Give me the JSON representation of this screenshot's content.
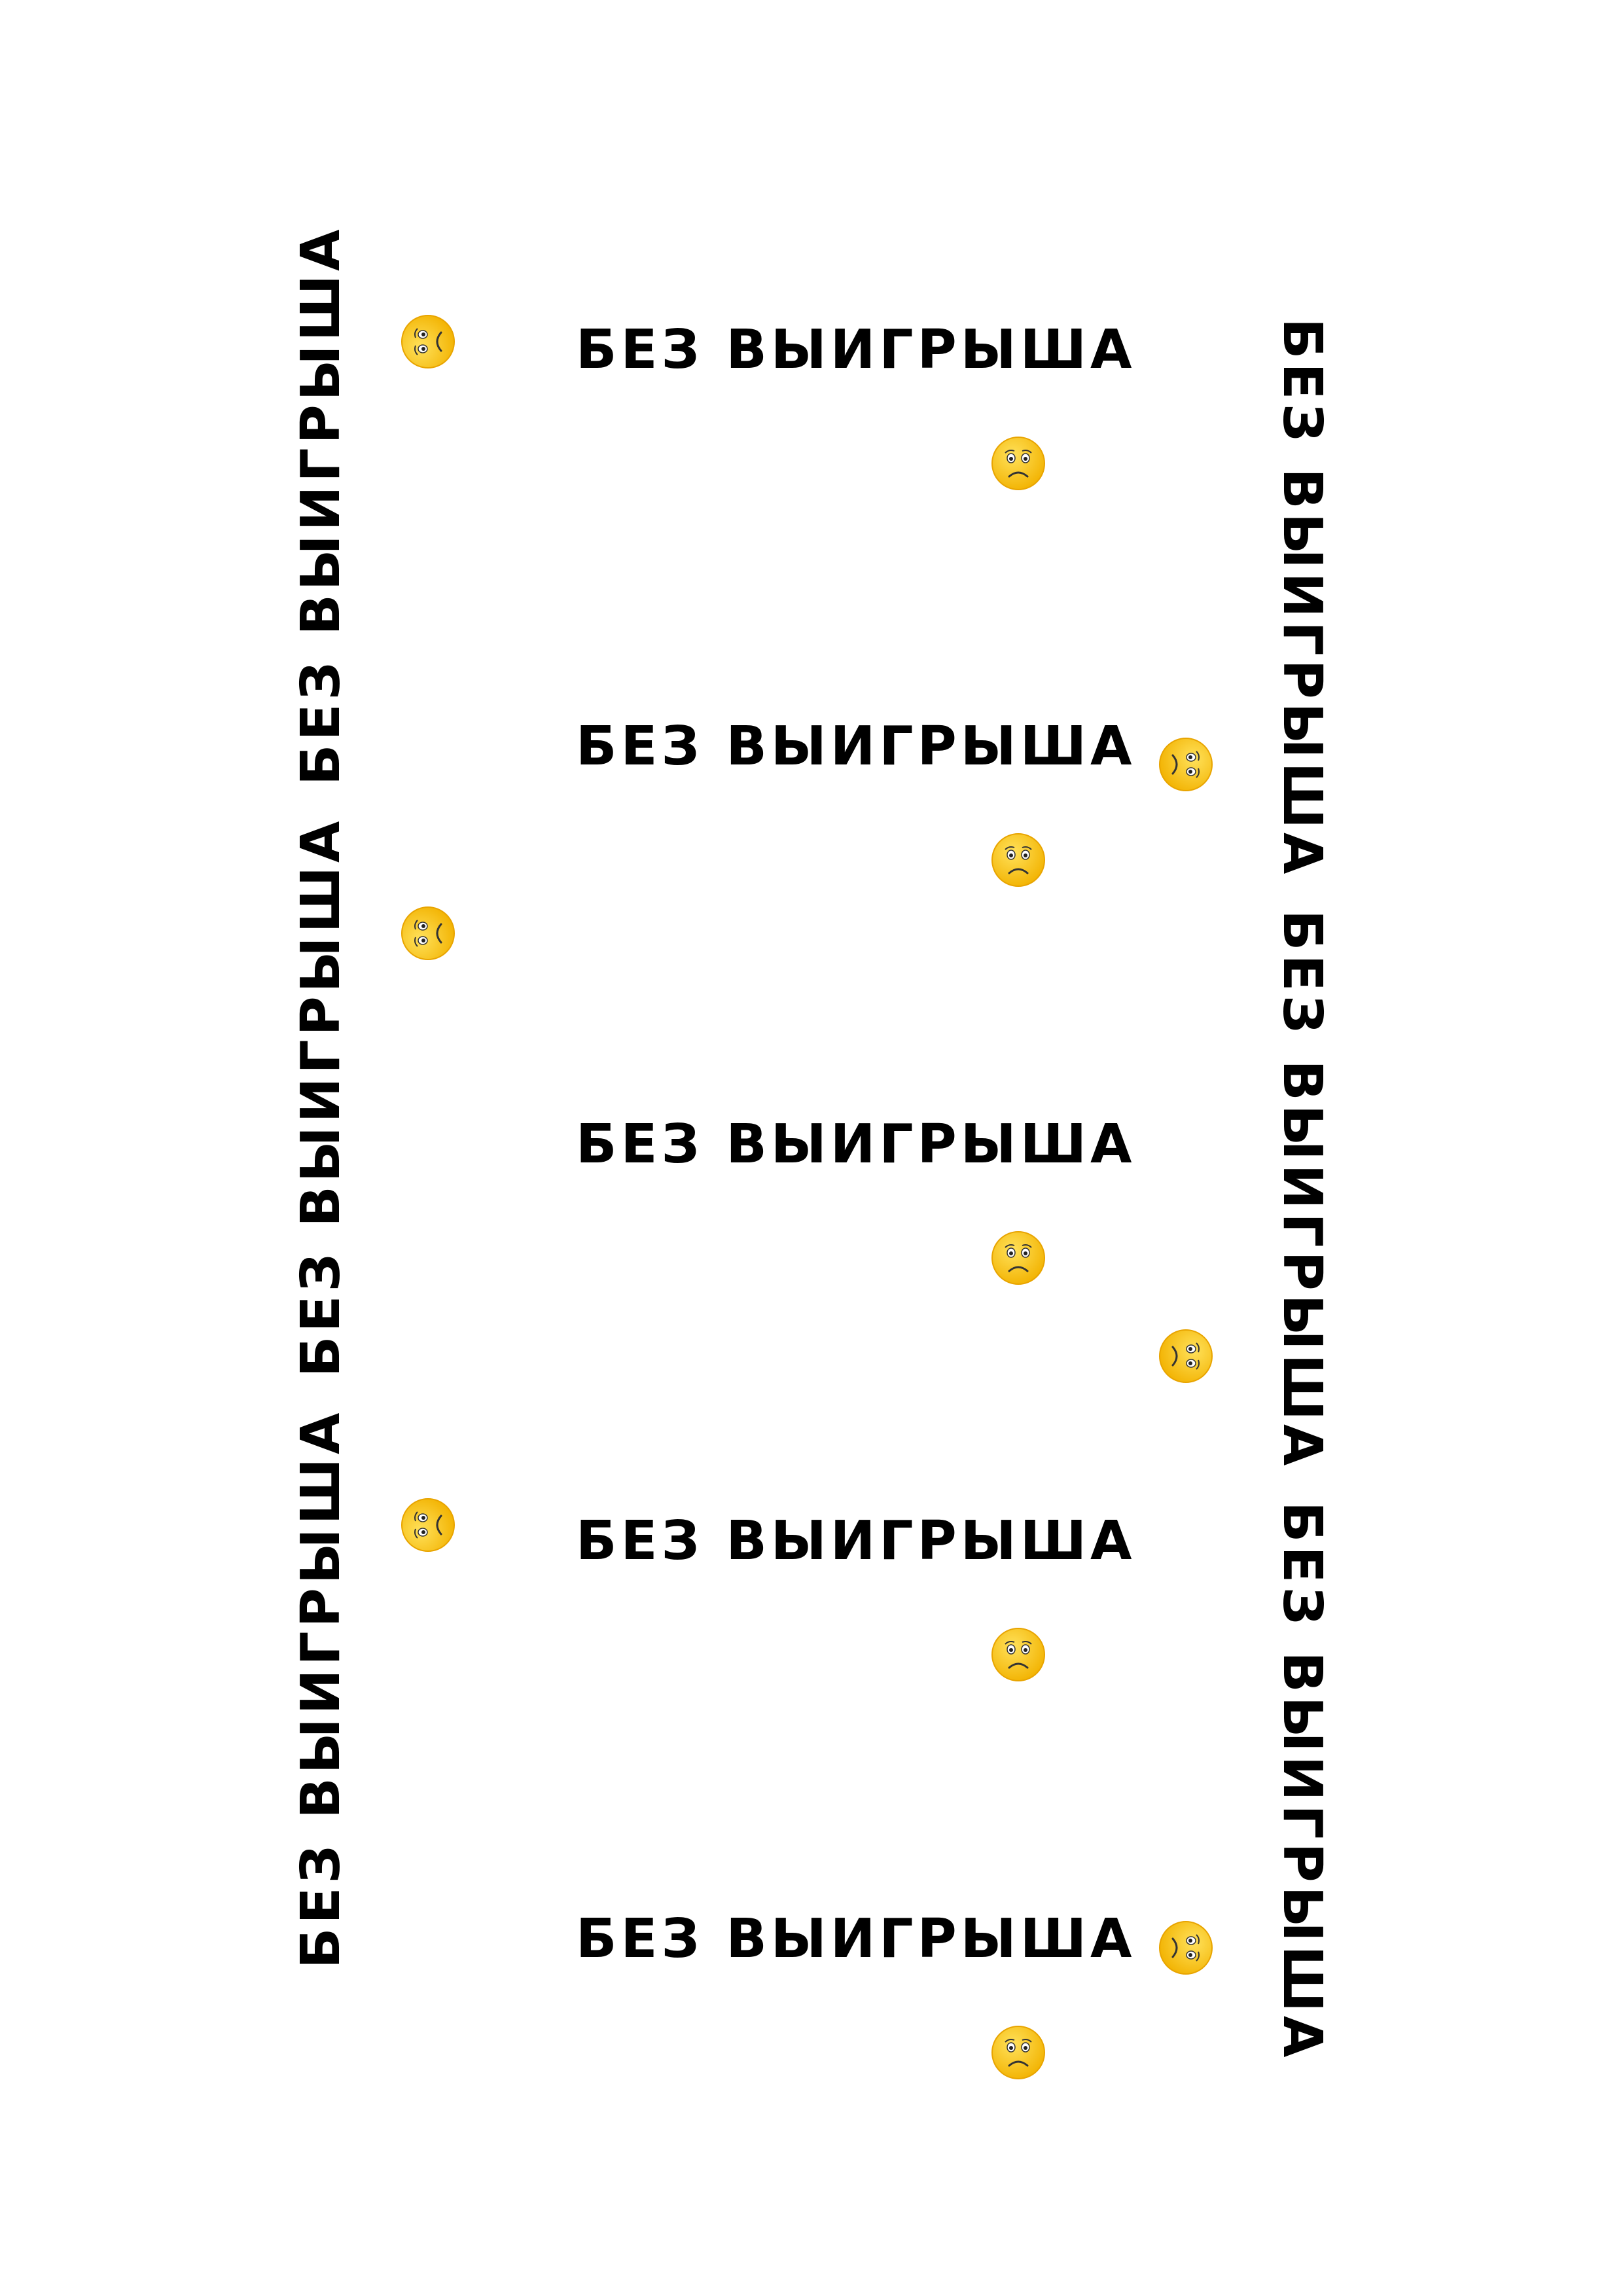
{
  "ticket": {
    "label": "БЕЗ ВЫИГРЫША"
  },
  "colors": {
    "face": "#f7c21b",
    "face_edge": "#e8a400",
    "ink": "#000000"
  },
  "icons": {
    "sad": "sad-face-icon",
    "sad_rotated": "sad-face-rotated-icon"
  }
}
